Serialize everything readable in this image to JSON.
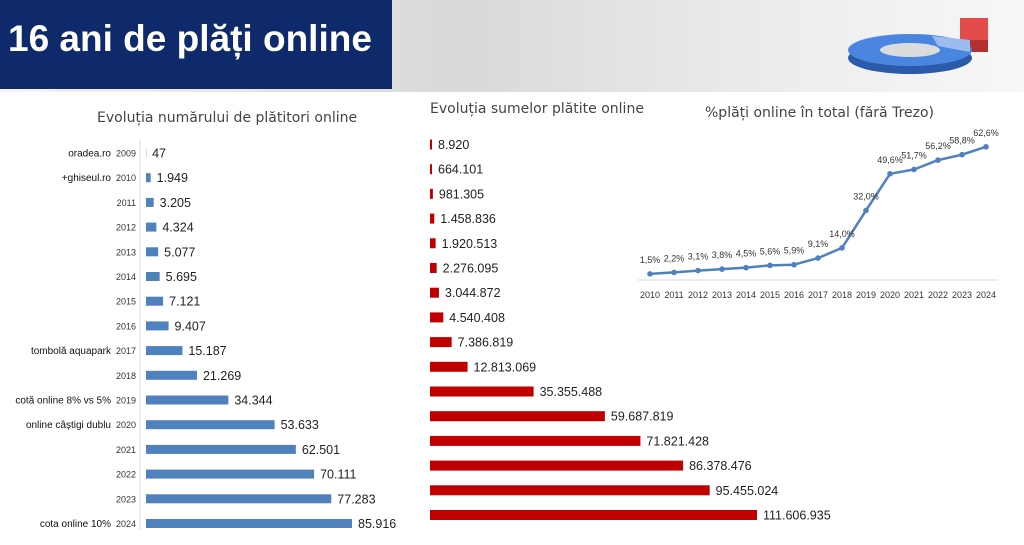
{
  "header": {
    "title": "16 ani de plăți online"
  },
  "colors": {
    "header_bg": "#0e2a6b",
    "payers_bar": "#4f81bd",
    "amounts_bar": "#c00000",
    "share_line": "#4f81bd"
  },
  "chart_data": [
    {
      "type": "bar",
      "orientation": "horizontal",
      "title": "Evoluția numărului de plătitori online",
      "categories": [
        "2009",
        "2010",
        "2011",
        "2012",
        "2013",
        "2014",
        "2015",
        "2016",
        "2017",
        "2018",
        "2019",
        "2020",
        "2021",
        "2022",
        "2023",
        "2024"
      ],
      "annotations": [
        "oradea.ro",
        "+ghiseul.ro",
        "",
        "",
        "",
        "",
        "",
        "",
        "tombolă aquapark",
        "",
        "cotă online 8% vs 5%",
        "online câștigi dublu",
        "",
        "",
        "",
        "cota online 10%"
      ],
      "values": [
        47,
        1949,
        3205,
        4324,
        5077,
        5695,
        7121,
        9407,
        15187,
        21269,
        34344,
        53633,
        62501,
        70111,
        77283,
        85916
      ],
      "value_labels": [
        "47",
        "1.949",
        "3.205",
        "4.324",
        "5.077",
        "5.695",
        "7.121",
        "9.407",
        "15.187",
        "21.269",
        "34.344",
        "53.633",
        "62.501",
        "70.111",
        "77.283",
        "85.916"
      ]
    },
    {
      "type": "bar",
      "orientation": "horizontal",
      "title": "Evoluția sumelor plătite online",
      "values": [
        8920,
        664101,
        981305,
        1458836,
        1920513,
        2276095,
        3044872,
        4540408,
        7386819,
        12813069,
        35355488,
        59687819,
        71821428,
        86378476,
        95455024,
        111606935
      ],
      "value_labels": [
        "8.920",
        "664.101",
        "981.305",
        "1.458.836",
        "1.920.513",
        "2.276.095",
        "3.044.872",
        "4.540.408",
        "7.386.819",
        "12.813.069",
        "35.355.488",
        "59.687.819",
        "71.821.428",
        "86.378.476",
        "95.455.024",
        "111.606.935"
      ]
    },
    {
      "type": "line",
      "title": "%plăți online în total (fără Trezo)",
      "categories": [
        "2010",
        "2011",
        "2012",
        "2013",
        "2014",
        "2015",
        "2016",
        "2017",
        "2018",
        "2019",
        "2020",
        "2021",
        "2022",
        "2023",
        "2024"
      ],
      "values": [
        1.5,
        2.2,
        3.1,
        3.8,
        4.5,
        5.6,
        5.9,
        9.1,
        14.0,
        32.0,
        49.6,
        51.7,
        56.2,
        58.8,
        62.6
      ],
      "value_labels": [
        "1,5%",
        "2,2%",
        "3,1%",
        "3,8%",
        "4,5%",
        "5,6%",
        "5,9%",
        "9,1%",
        "14,0%",
        "32,0%",
        "49,6%",
        "51,7%",
        "56,2%",
        "58,8%",
        "62,6%"
      ]
    }
  ]
}
